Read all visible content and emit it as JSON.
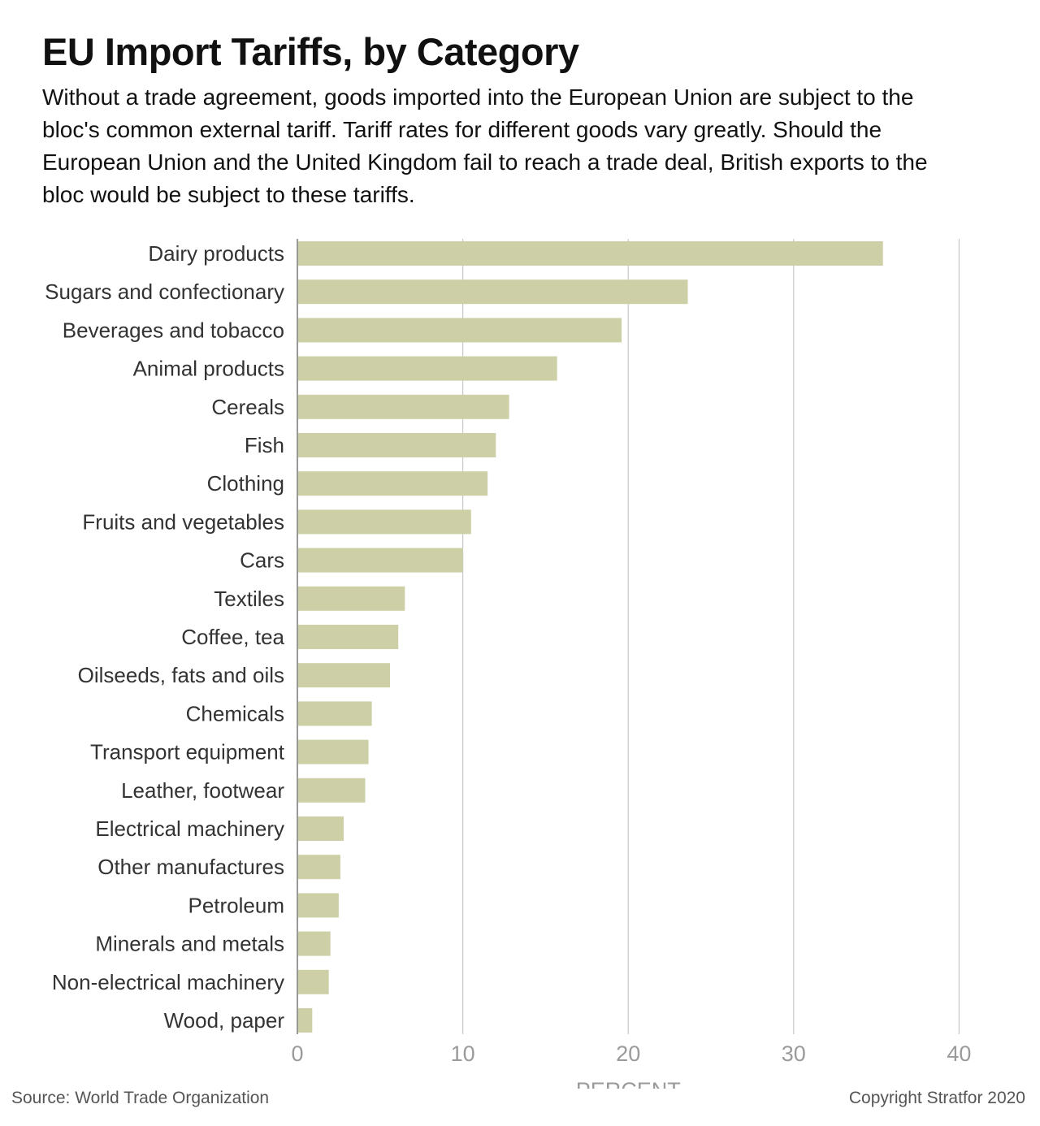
{
  "title": "EU Import Tariffs, by Category",
  "subtitle": "Without a trade agreement, goods imported into the European Union are subject to the bloc's common external tariff. Tariff rates for different goods vary greatly. Should the European Union and the United Kingdom fail to reach a trade deal, British exports to the bloc would be subject to these tariffs.",
  "source": "Source: World Trade Organization",
  "copyright": "Copyright Stratfor 2020",
  "colors": {
    "bar": "#cdd0a6",
    "grid": "#c8c8c8",
    "axis": "#999999",
    "category_text": "#333333",
    "tick_text": "#9a9a9a"
  },
  "chart_data": {
    "type": "bar",
    "orientation": "horizontal",
    "title": "EU Import Tariffs, by Category",
    "xlabel": "PERCENT",
    "ylabel": "",
    "xlim": [
      0,
      40
    ],
    "xticks": [
      0,
      10,
      20,
      30,
      40
    ],
    "grid": true,
    "categories": [
      "Dairy products",
      "Sugars and confectionary",
      "Beverages and tobacco",
      "Animal products",
      "Cereals",
      "Fish",
      "Clothing",
      "Fruits and vegetables",
      "Cars",
      "Textiles",
      "Coffee, tea",
      "Oilseeds, fats and oils",
      "Chemicals",
      "Transport equipment",
      "Leather, footwear",
      "Electrical machinery",
      "Other manufactures",
      "Petroleum",
      "Minerals and metals",
      "Non-electrical machinery",
      "Wood, paper"
    ],
    "values": [
      35.4,
      23.6,
      19.6,
      15.7,
      12.8,
      12.0,
      11.5,
      10.5,
      10.0,
      6.5,
      6.1,
      5.6,
      4.5,
      4.3,
      4.1,
      2.8,
      2.6,
      2.5,
      2.0,
      1.9,
      0.9
    ]
  }
}
